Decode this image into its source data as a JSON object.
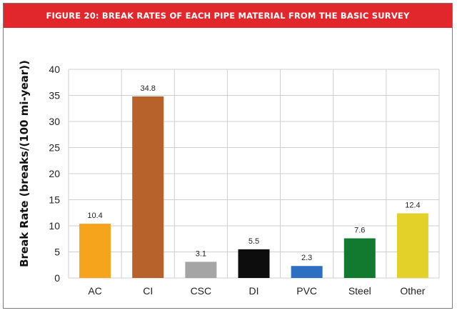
{
  "chart_data": {
    "type": "bar",
    "title": "FIGURE 20: BREAK RATES OF EACH PIPE MATERIAL FROM THE BASIC SURVEY",
    "xlabel": "",
    "ylabel": "Break Rate (breaks/(100 mi-year))",
    "ylim": [
      0,
      40
    ],
    "yticks": [
      "0",
      "5",
      "10",
      "15",
      "20",
      "25",
      "30",
      "35",
      "40"
    ],
    "categories": [
      "AC",
      "CI",
      "CSC",
      "DI",
      "PVC",
      "Steel",
      "Other"
    ],
    "values": [
      10.4,
      34.8,
      3.1,
      5.5,
      2.3,
      7.6,
      12.4
    ],
    "data_labels": [
      "10.4",
      "34.8",
      "3.1",
      "5.5",
      "2.3",
      "7.6",
      "12.4"
    ],
    "colors": [
      "#f5a41c",
      "#b7612b",
      "#a5a5a5",
      "#0d0d0d",
      "#2f6fc1",
      "#127a2f",
      "#e3d028"
    ],
    "grid": true,
    "legend": "none"
  }
}
